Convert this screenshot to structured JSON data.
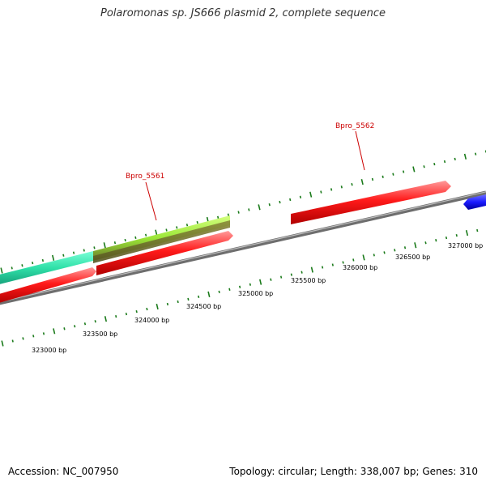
{
  "title": "Polaromonas sp. JS666 plasmid 2, complete sequence",
  "footer": {
    "accession": "Accession: NC_007950",
    "summary": "Topology: circular; Length: 338,007 bp; Genes: 310"
  },
  "gene_labels": [
    "Bpro_5561",
    "Bpro_5562"
  ],
  "scale_labels": [
    "323000 bp",
    "323500 bp",
    "324000 bp",
    "324500 bp",
    "325000 bp",
    "325500 bp",
    "326000 bp",
    "326500 bp",
    "327000 bp"
  ],
  "colors": {
    "cds_forward": "#ff0000",
    "feature_teal": "#33e6b0",
    "feature_lime": "#99e633",
    "feature_blue": "#0000ee",
    "backbone": "#8c8c8c",
    "tick": "#1a7a1a",
    "label_line": "#cc0000"
  }
}
